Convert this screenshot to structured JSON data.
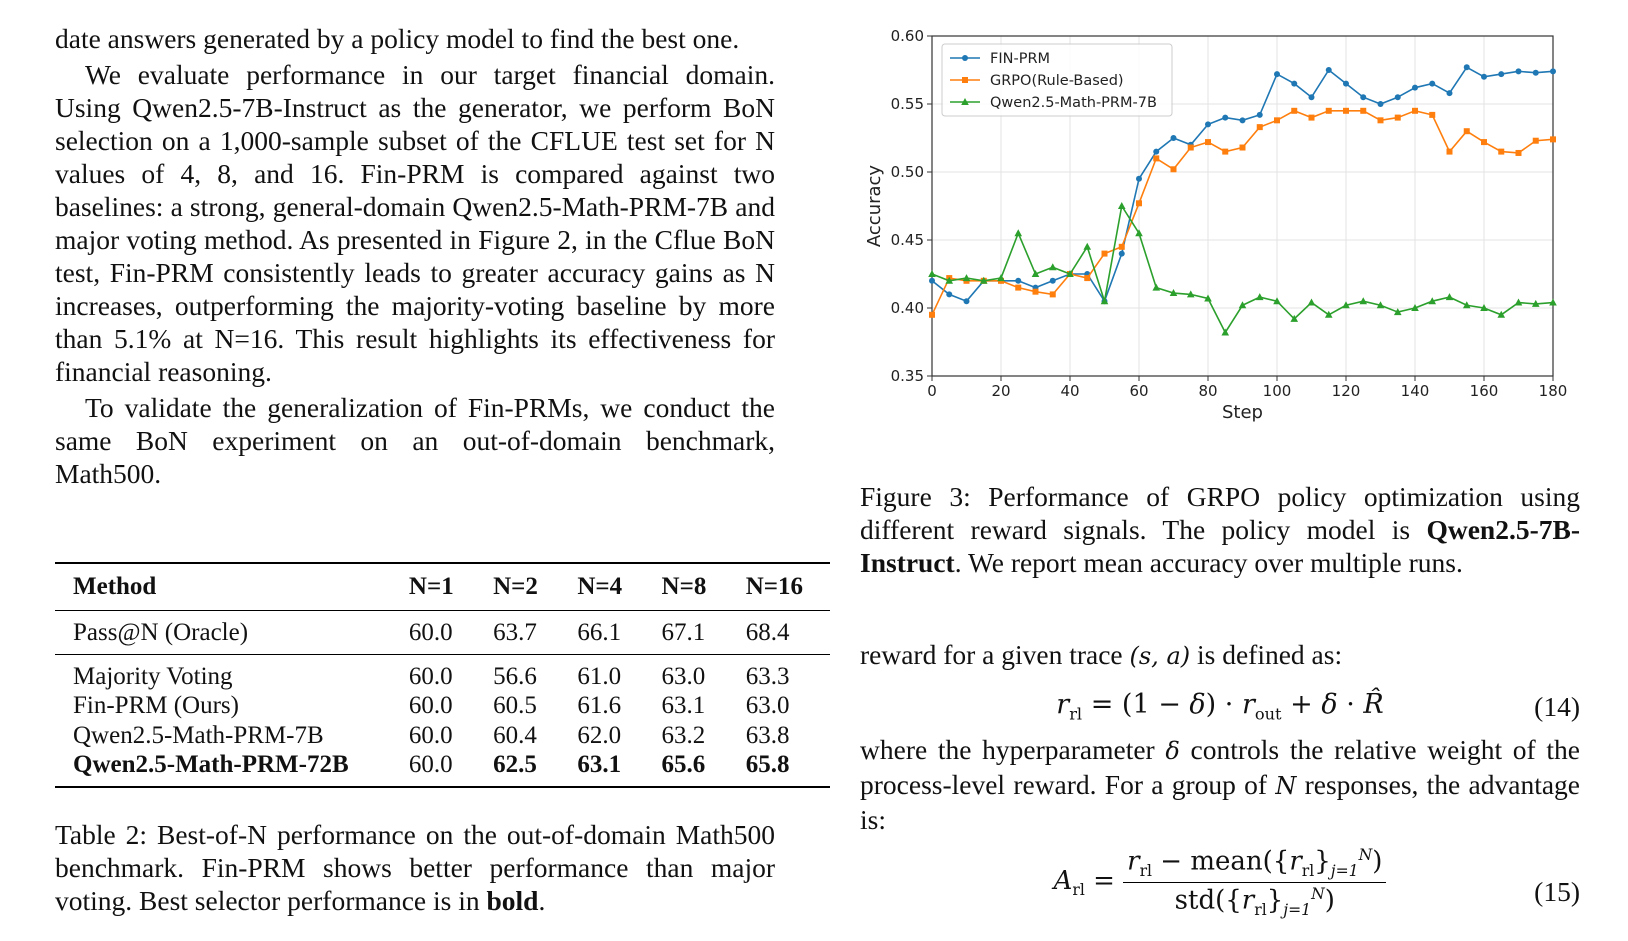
{
  "left_text": {
    "p0": "date answers generated by a policy model to find the best one.",
    "p1": "We evaluate performance in our target financial domain. Using Qwen2.5-7B-Instruct as the generator, we perform BoN selection on a 1,000-sample subset of the CFLUE test set for N values of 4, 8, and 16. Fin-PRM is compared against two baselines: a strong, general-domain Qwen2.5-Math-PRM-7B and major voting method. As presented in Figure 2, in the Cflue BoN test, Fin-PRM consistently leads to greater accuracy gains as N increases, outperforming the majority-voting baseline by more than 5.1% at N=16. This result highlights its effectiveness for financial reasoning.",
    "p2": "To validate the generalization of Fin-PRMs, we conduct the same BoN experiment on an out-of-domain benchmark, Math500."
  },
  "table": {
    "headers": [
      "Method",
      "N=1",
      "N=2",
      "N=4",
      "N=8",
      "N=16"
    ],
    "oracle": [
      "Pass@N (Oracle)",
      "60.0",
      "63.7",
      "66.1",
      "67.1",
      "68.4"
    ],
    "rows": [
      [
        "Majority Voting",
        "60.0",
        "56.6",
        "61.0",
        "63.0",
        "63.3"
      ],
      [
        "Fin-PRM (Ours)",
        "60.0",
        "60.5",
        "61.6",
        "63.1",
        "63.0"
      ],
      [
        "Qwen2.5-Math-PRM-7B",
        "60.0",
        "60.4",
        "62.0",
        "63.2",
        "63.8"
      ],
      [
        "Qwen2.5-Math-PRM-72B",
        "60.0",
        "62.5",
        "63.1",
        "65.6",
        "65.8"
      ]
    ],
    "caption_a": "Table 2: Best-of-N performance on the out-of-domain Math500 benchmark. Fin-PRM shows better performance than major voting. Best selector performance is in ",
    "caption_bold": "bold",
    "caption_end": "."
  },
  "figure": {
    "caption_a": "Figure 3: Performance of GRPO policy optimization using different reward signals. The policy model is ",
    "caption_bold": "Qwen2.5-7B-Instruct",
    "caption_b": ". We report mean accuracy over multiple runs."
  },
  "right_text": {
    "p_a": "reward for a given trace ",
    "p_a_math": "(s, a)",
    "p_a_end": " is defined as:",
    "eq14_num": "(14)",
    "eq15_num": "(15)",
    "p_b1": "where the hyperparameter ",
    "p_b_math": "δ",
    "p_b2": " controls the relative weight of the process-level reward. For a group of ",
    "p_b_math2": "N",
    "p_b3": " responses, the advantage is:"
  },
  "chart_data": {
    "type": "line",
    "xlabel": "Step",
    "ylabel": "Accuracy",
    "xlim": [
      0,
      180
    ],
    "ylim": [
      0.35,
      0.6
    ],
    "xticks": [
      "0",
      "20",
      "40",
      "60",
      "80",
      "100",
      "120",
      "140",
      "160",
      "180"
    ],
    "yticks": [
      "0.35",
      "0.40",
      "0.45",
      "0.50",
      "0.55",
      "0.60"
    ],
    "grid": true,
    "legend": "top-left",
    "x": [
      0,
      5,
      10,
      15,
      20,
      25,
      30,
      35,
      40,
      45,
      50,
      55,
      60,
      65,
      70,
      75,
      80,
      85,
      90,
      95,
      100,
      105,
      110,
      115,
      120,
      125,
      130,
      135,
      140,
      145,
      150,
      155,
      160,
      165,
      170,
      175,
      180
    ],
    "series": [
      {
        "name": "FIN-PRM",
        "color": "#1f77b4",
        "marker": "circle",
        "values": [
          0.42,
          0.41,
          0.405,
          0.42,
          0.42,
          0.42,
          0.415,
          0.42,
          0.425,
          0.425,
          0.405,
          0.44,
          0.495,
          0.515,
          0.525,
          0.52,
          0.535,
          0.54,
          0.538,
          0.542,
          0.572,
          0.565,
          0.555,
          0.575,
          0.565,
          0.555,
          0.55,
          0.555,
          0.562,
          0.565,
          0.558,
          0.577,
          0.57,
          0.572,
          0.574,
          0.573,
          0.574
        ]
      },
      {
        "name": "GRPO(Rule-Based)",
        "color": "#ff7f0e",
        "marker": "square",
        "values": [
          0.395,
          0.422,
          0.42,
          0.42,
          0.42,
          0.415,
          0.412,
          0.41,
          0.425,
          0.422,
          0.44,
          0.445,
          0.477,
          0.51,
          0.502,
          0.518,
          0.522,
          0.515,
          0.518,
          0.533,
          0.538,
          0.545,
          0.54,
          0.545,
          0.545,
          0.545,
          0.538,
          0.54,
          0.545,
          0.542,
          0.515,
          0.53,
          0.522,
          0.515,
          0.514,
          0.523,
          0.524
        ]
      },
      {
        "name": "Qwen2.5-Math-PRM-7B",
        "color": "#2ca02c",
        "marker": "triangle",
        "values": [
          0.425,
          0.42,
          0.422,
          0.42,
          0.422,
          0.455,
          0.425,
          0.43,
          0.425,
          0.445,
          0.405,
          0.475,
          0.455,
          0.415,
          0.411,
          0.41,
          0.407,
          0.382,
          0.402,
          0.408,
          0.405,
          0.392,
          0.404,
          0.395,
          0.402,
          0.405,
          0.402,
          0.397,
          0.4,
          0.405,
          0.408,
          0.402,
          0.4,
          0.395,
          0.404,
          0.403,
          0.404
        ]
      }
    ]
  }
}
